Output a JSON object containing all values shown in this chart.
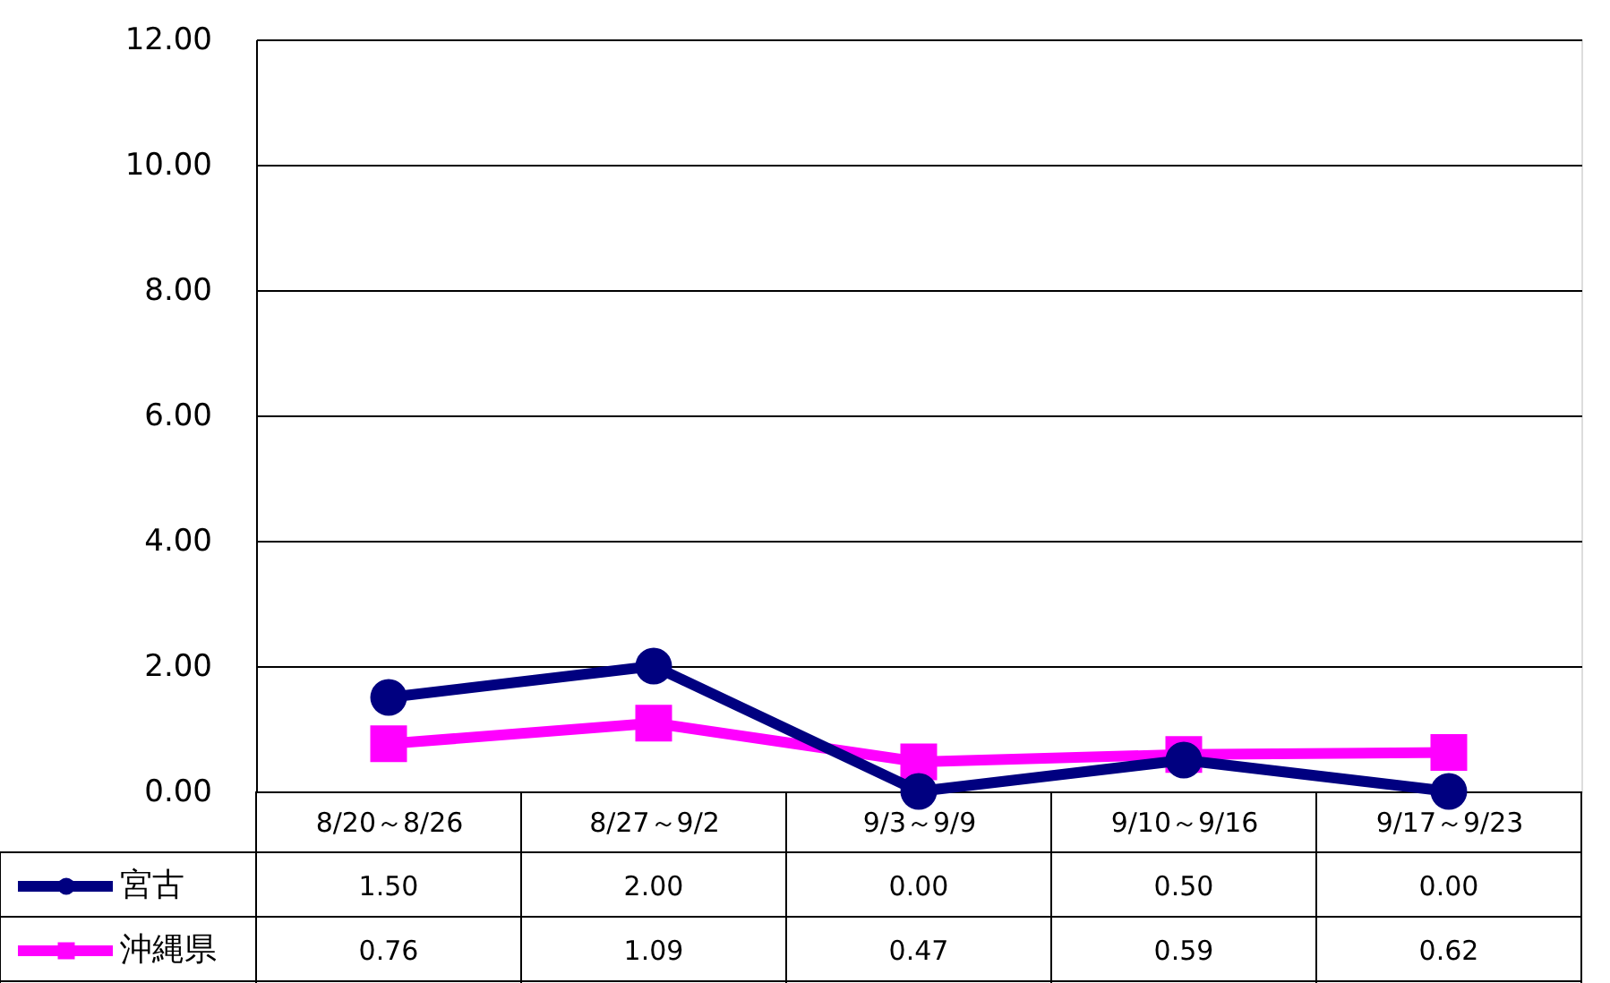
{
  "chart_data": {
    "type": "line",
    "categories": [
      "8/20～8/26",
      "8/27～9/2",
      "9/3～9/9",
      "9/10～9/16",
      "9/17～9/23"
    ],
    "series": [
      {
        "name": "宮古",
        "color": "#000080",
        "marker": "circle",
        "values": [
          1.5,
          2.0,
          0.0,
          0.5,
          0.0
        ],
        "value_labels": [
          "1.50",
          "2.00",
          "0.00",
          "0.50",
          "0.00"
        ]
      },
      {
        "name": "沖縄県",
        "color": "#ff00ff",
        "marker": "square",
        "values": [
          0.76,
          1.09,
          0.47,
          0.59,
          0.62
        ],
        "value_labels": [
          "0.76",
          "1.09",
          "0.47",
          "0.59",
          "0.62"
        ]
      }
    ],
    "ylim": [
      0,
      12
    ],
    "yticks": [
      {
        "value": 0,
        "label": "0.00"
      },
      {
        "value": 2,
        "label": "2.00"
      },
      {
        "value": 4,
        "label": "4.00"
      },
      {
        "value": 6,
        "label": "6.00"
      },
      {
        "value": 8,
        "label": "8.00"
      },
      {
        "value": 10,
        "label": "10.00"
      },
      {
        "value": 12,
        "label": "12.00"
      }
    ],
    "grid": "y",
    "legend": "bottom left",
    "line_style": "solid"
  }
}
